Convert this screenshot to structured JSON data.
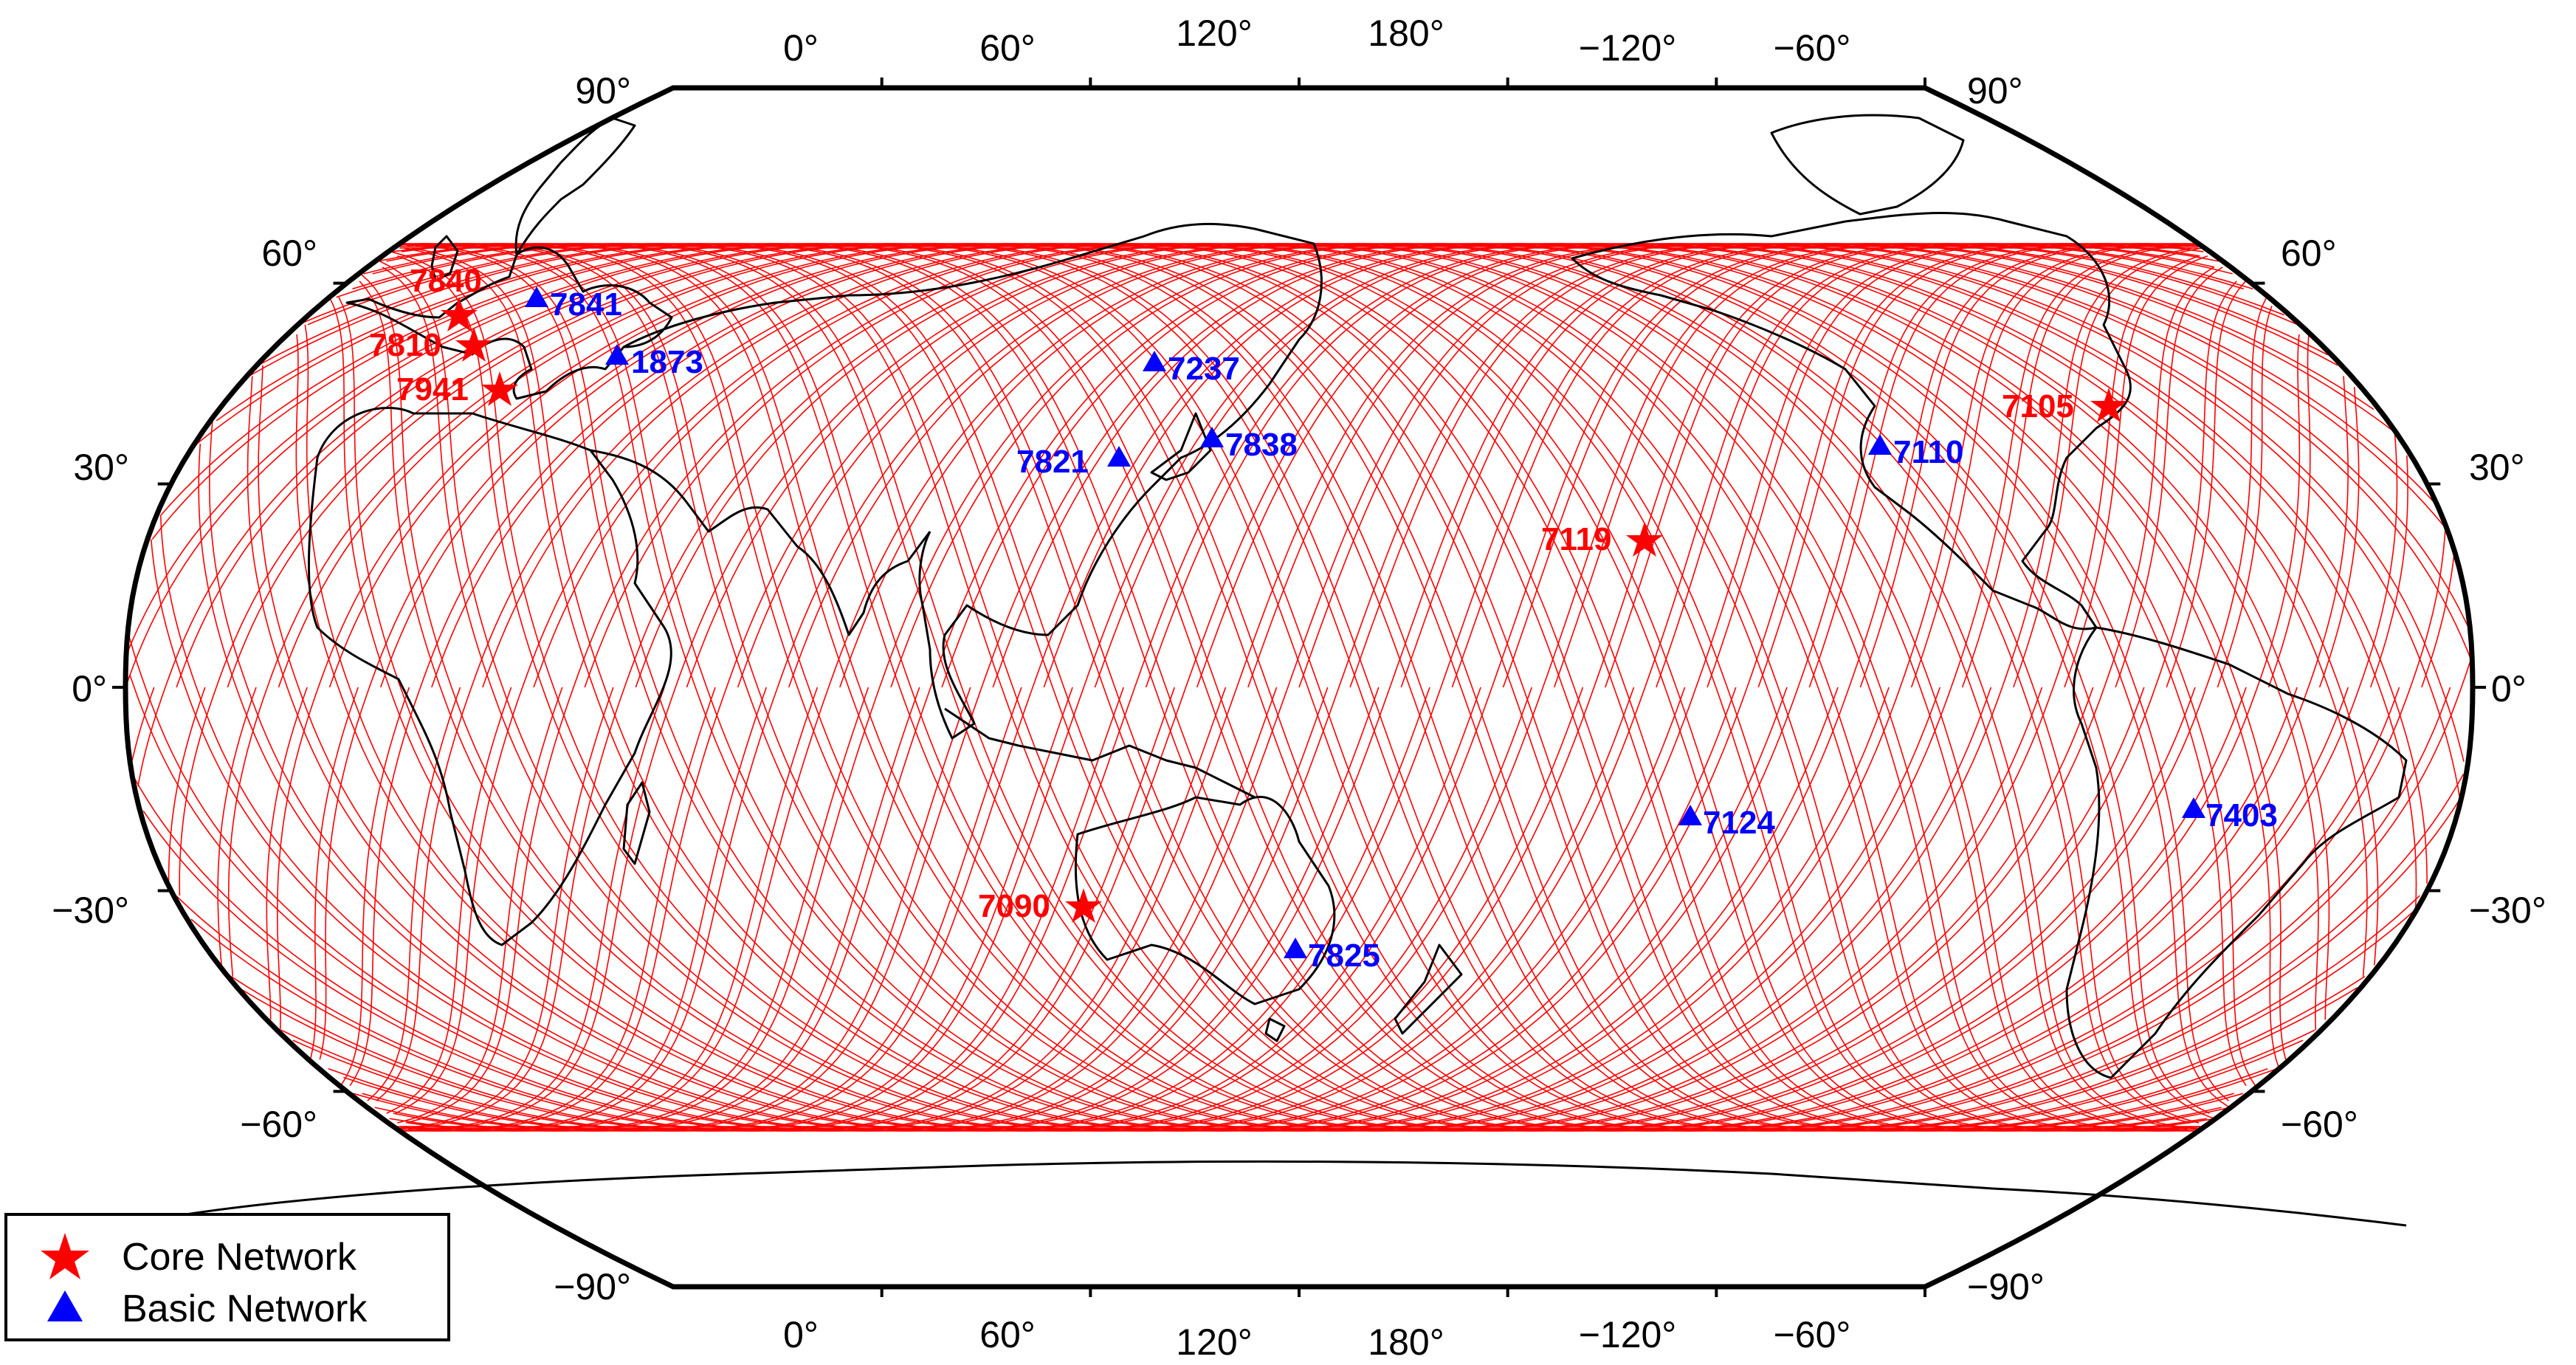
{
  "map": {
    "projection": "robinson",
    "central_meridian": -120,
    "track_latitude_limit": 66,
    "colors": {
      "core": "#ff0000",
      "basic": "#0000ff",
      "track": "#ff0000",
      "coast": "#000000"
    }
  },
  "top_lon_labels": [
    "0°",
    "60°",
    "120°",
    "180°",
    "−120°",
    "−60°"
  ],
  "bottom_lon_labels": [
    "0°",
    "60°",
    "120°",
    "180°",
    "−120°",
    "−60°"
  ],
  "lat_labels_left": [
    "90°",
    "60°",
    "30°",
    "0°",
    "−30°",
    "−60°",
    "−90°"
  ],
  "lat_labels_right": [
    "90°",
    "60°",
    "30°",
    "0°",
    "−30°",
    "−60°",
    "−90°"
  ],
  "stations": [
    {
      "id": "7840",
      "type": "core"
    },
    {
      "id": "7810",
      "type": "core"
    },
    {
      "id": "7941",
      "type": "core"
    },
    {
      "id": "7841",
      "type": "basic"
    },
    {
      "id": "1873",
      "type": "basic"
    },
    {
      "id": "7237",
      "type": "basic"
    },
    {
      "id": "7821",
      "type": "basic"
    },
    {
      "id": "7838",
      "type": "basic"
    },
    {
      "id": "7119",
      "type": "core"
    },
    {
      "id": "7110",
      "type": "basic"
    },
    {
      "id": "7105",
      "type": "core"
    },
    {
      "id": "7124",
      "type": "basic"
    },
    {
      "id": "7403",
      "type": "basic"
    },
    {
      "id": "7090",
      "type": "core"
    },
    {
      "id": "7825",
      "type": "basic"
    }
  ],
  "legend": {
    "core": {
      "label": "Core Network",
      "icon": "red-star-icon"
    },
    "basic": {
      "label": "Basic Network",
      "icon": "blue-triangle-icon"
    }
  }
}
